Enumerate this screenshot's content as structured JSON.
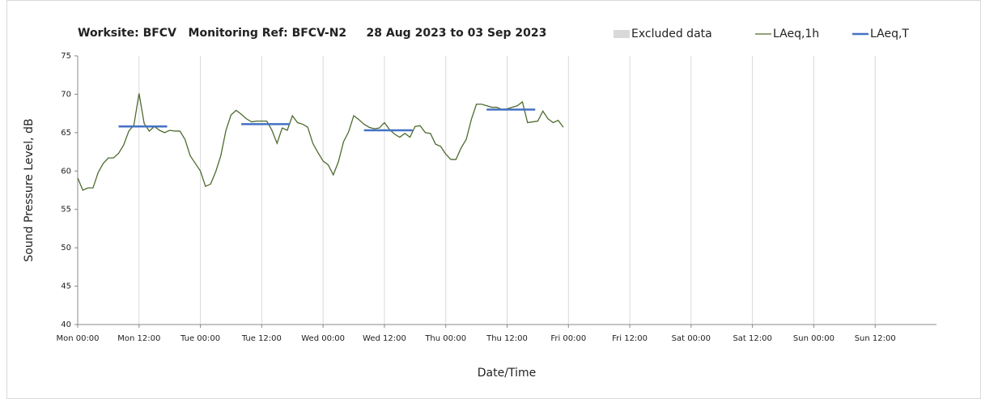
{
  "chart_data": {
    "type": "line",
    "title": "Worksite: BFCV   Monitoring Ref: BFCV-N2     28 Aug 2023 to 03 Sep 2023",
    "xlabel": "Date/Time",
    "ylabel": "Sound Pressure Level, dB",
    "xlim": [
      0,
      168
    ],
    "xticks": [
      {
        "value": 0,
        "label": "Mon 00:00"
      },
      {
        "value": 12,
        "label": "Mon 12:00"
      },
      {
        "value": 24,
        "label": "Tue 00:00"
      },
      {
        "value": 36,
        "label": "Tue 12:00"
      },
      {
        "value": 48,
        "label": "Wed 00:00"
      },
      {
        "value": 60,
        "label": "Wed 12:00"
      },
      {
        "value": 72,
        "label": "Thu 00:00"
      },
      {
        "value": 84,
        "label": "Thu 12:00"
      },
      {
        "value": 96,
        "label": "Fri 00:00"
      },
      {
        "value": 108,
        "label": "Fri 12:00"
      },
      {
        "value": 120,
        "label": "Sat 00:00"
      },
      {
        "value": 132,
        "label": "Sat 12:00"
      },
      {
        "value": 144,
        "label": "Sun 00:00"
      },
      {
        "value": 156,
        "label": "Sun 12:00"
      }
    ],
    "ylim": [
      40,
      75
    ],
    "yticks": [
      40,
      45,
      50,
      55,
      60,
      65,
      70,
      75
    ],
    "grid": "x",
    "legend": "top-right",
    "series": [
      {
        "name": "Excluded data",
        "color": "#d9d9d9",
        "x": [],
        "values": []
      },
      {
        "name": "LAeq,1h",
        "color": "#4e6b2e",
        "x": [
          0,
          1,
          2,
          3,
          4,
          5,
          6,
          7,
          8,
          9,
          10,
          11,
          12,
          13,
          14,
          15,
          16,
          17,
          18,
          19,
          20,
          21,
          22,
          23,
          24,
          25,
          26,
          27,
          28,
          29,
          30,
          31,
          32,
          33,
          34,
          35,
          36,
          37,
          38,
          39,
          40,
          41,
          42,
          43,
          44,
          45,
          46,
          47,
          48,
          49,
          50,
          51,
          52,
          53,
          54,
          55,
          56,
          57,
          58,
          59,
          60,
          61,
          62,
          63,
          64,
          65,
          66,
          67,
          68,
          69,
          70,
          71,
          72,
          73,
          74,
          75,
          76,
          77,
          78,
          79,
          80,
          81,
          82,
          83,
          84,
          85,
          86,
          87,
          88,
          89,
          90,
          91,
          92,
          93,
          94,
          95
        ],
        "values": [
          59.1,
          57.5,
          57.8,
          57.8,
          59.8,
          61.0,
          61.7,
          61.7,
          62.3,
          63.4,
          65.2,
          66.0,
          70.1,
          66.2,
          65.2,
          65.8,
          65.3,
          65.0,
          65.3,
          65.2,
          65.2,
          64.1,
          62.0,
          61.0,
          60.0,
          58.0,
          58.3,
          59.9,
          62.0,
          65.3,
          67.3,
          67.9,
          67.4,
          66.8,
          66.4,
          66.5,
          66.5,
          66.5,
          65.3,
          63.6,
          65.6,
          65.3,
          67.2,
          66.3,
          66.1,
          65.7,
          63.6,
          62.4,
          61.3,
          60.8,
          59.5,
          61.2,
          63.8,
          65.1,
          67.2,
          66.7,
          66.1,
          65.7,
          65.5,
          65.6,
          66.3,
          65.4,
          64.8,
          64.4,
          64.9,
          64.4,
          65.8,
          65.9,
          65.0,
          64.9,
          63.5,
          63.2,
          62.2,
          61.5,
          61.5,
          63.0,
          64.1,
          66.7,
          68.7,
          68.7,
          68.5,
          68.3,
          68.3,
          68.0,
          68.1,
          68.3,
          68.5,
          69.0,
          66.3,
          66.4,
          66.5,
          67.8,
          66.8,
          66.3,
          66.6,
          65.7
        ]
      },
      {
        "name": "LAeq,T",
        "color": "#4472c4",
        "x": [
          8,
          17.5,
          17.5,
          32,
          41.5,
          41.5,
          56,
          65.5,
          65.5,
          80,
          89.5
        ],
        "values": [
          65.8,
          65.8,
          null,
          66.1,
          66.1,
          null,
          65.3,
          65.3,
          null,
          68.0,
          68.0
        ]
      }
    ]
  }
}
